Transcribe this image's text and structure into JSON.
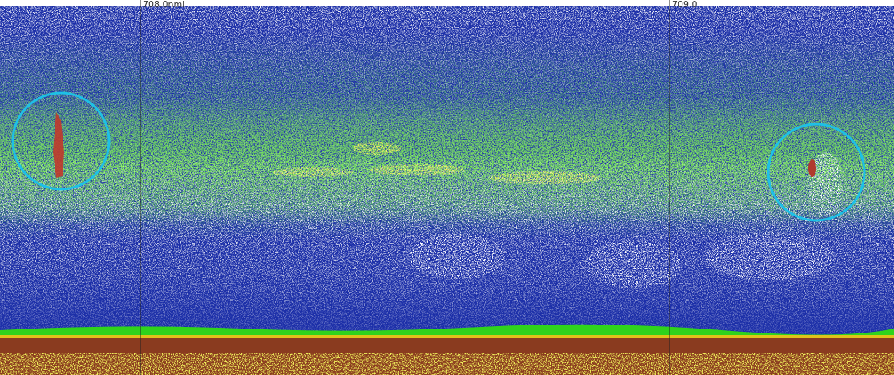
{
  "labels": {
    "left_marker": "708.0nmi",
    "right_marker": "709.0"
  }
}
